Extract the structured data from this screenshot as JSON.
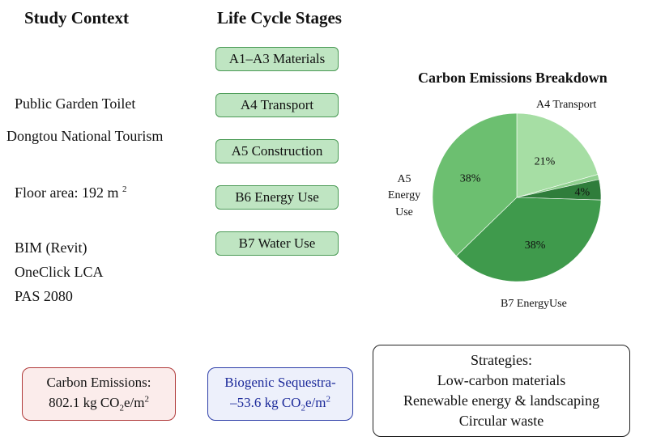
{
  "headings": {
    "study_context": "Study Context",
    "life_cycle": "Life Cycle Stages"
  },
  "context": {
    "building": "Public Garden Toilet",
    "location": "Dongtou National Tourism",
    "floor_area": "Floor area: 192 m",
    "floor_area_unit_sup": "2",
    "tools": [
      "BIM (Revit)",
      "OneClick LCA",
      "PAS 2080"
    ]
  },
  "stages": [
    "A1–A3 Materials",
    "A4 Transport",
    "A5 Construction",
    "B6 Energy Use",
    "B7 Water Use"
  ],
  "emissions_box": {
    "title": "Carbon Emissions:",
    "value": "802.1 kg CO",
    "sub": "2",
    "unit": "e/m",
    "sup": "2"
  },
  "biogenic_box": {
    "title": "Biogenic Sequestra-",
    "value": "–53.6 kg CO",
    "sub": "2",
    "unit": "e/m",
    "sup": "2"
  },
  "strategies": {
    "title": "Strategies:",
    "items": [
      "Low-carbon materials",
      "Renewable energy & landscaping",
      "Circular waste"
    ]
  },
  "chart_data": {
    "type": "pie",
    "title": "Carbon Emissions Breakdown",
    "slices": [
      {
        "label": "A4 Transport",
        "value": 21,
        "value_label": "21%",
        "color": "#a6dea4"
      },
      {
        "label": "",
        "value": 1,
        "value_label": "",
        "color": "#8fd08e"
      },
      {
        "label": "",
        "value": 4,
        "value_label": "4%",
        "color": "#2f7d3b"
      },
      {
        "label": "B7 EnergyUse",
        "value": 38,
        "value_label": "38%",
        "color": "#3f9a4c"
      },
      {
        "label": "A5 Energy Use",
        "value": 38,
        "value_label": "38%",
        "color": "#6cbf70"
      }
    ],
    "outer_labels": {
      "top": "A4 Transport",
      "left": [
        "A5",
        "Energy",
        "Use"
      ],
      "bottom": "B7  EnergyUse"
    }
  }
}
